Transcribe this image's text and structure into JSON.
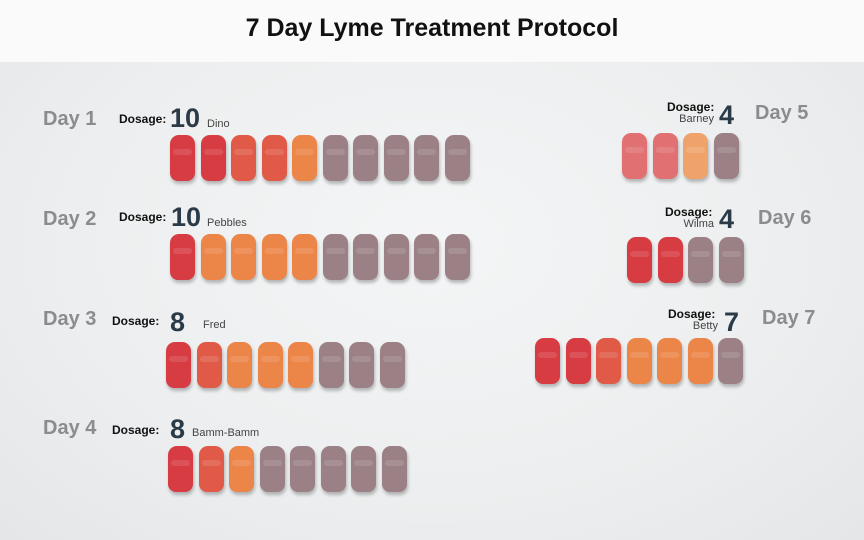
{
  "title": "7 Day Lyme Treatment Protocol",
  "dosage_label": "Dosage:",
  "colors": {
    "red": "#d63c42",
    "red_orange": "#e15a47",
    "orange": "#ec8548",
    "pink_red": "#e07072",
    "tan_orange": "#efa26a",
    "purple": "#9b8186"
  },
  "days": [
    {
      "label": "Day 1",
      "dosage": "10",
      "character": "Dino",
      "vitamins": [
        "red",
        "red",
        "red_orange",
        "red_orange",
        "orange",
        "purple",
        "purple",
        "purple",
        "purple",
        "purple"
      ]
    },
    {
      "label": "Day 2",
      "dosage": "10",
      "character": "Pebbles",
      "vitamins": [
        "red",
        "orange",
        "orange",
        "orange",
        "orange",
        "purple",
        "purple",
        "purple",
        "purple",
        "purple"
      ]
    },
    {
      "label": "Day 3",
      "dosage": "8",
      "character": "Fred",
      "vitamins": [
        "red",
        "red_orange",
        "orange",
        "orange",
        "orange",
        "purple",
        "purple",
        "purple"
      ]
    },
    {
      "label": "Day 4",
      "dosage": "8",
      "character": "Bamm-Bamm",
      "vitamins": [
        "red",
        "red_orange",
        "orange",
        "purple",
        "purple",
        "purple",
        "purple",
        "purple"
      ]
    },
    {
      "label": "Day 5",
      "dosage": "4",
      "character": "Barney",
      "vitamins": [
        "pink_red",
        "pink_red",
        "tan_orange",
        "purple"
      ]
    },
    {
      "label": "Day 6",
      "dosage": "4",
      "character": "Wilma",
      "vitamins": [
        "red",
        "red",
        "purple",
        "purple"
      ]
    },
    {
      "label": "Day 7",
      "dosage": "7",
      "character": "Betty",
      "vitamins": [
        "red",
        "red",
        "red_orange",
        "orange",
        "orange",
        "orange",
        "purple"
      ]
    }
  ]
}
